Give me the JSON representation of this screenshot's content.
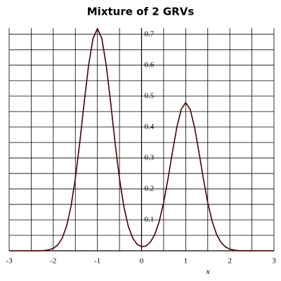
{
  "chart_data": {
    "type": "line",
    "title": "Mixture of 2 GRVs",
    "x_label": "x",
    "x": [
      -3,
      -2.9,
      -2.8,
      -2.7,
      -2.6,
      -2.5,
      -2.4,
      -2.3,
      -2.2,
      -2.1,
      -2,
      -1.9,
      -1.8,
      -1.7,
      -1.6,
      -1.5,
      -1.4,
      -1.3,
      -1.2,
      -1.1,
      -1,
      -0.9,
      -0.8,
      -0.7,
      -0.6,
      -0.5,
      -0.4,
      -0.3,
      -0.2,
      -0.1,
      0,
      0.1,
      0.2,
      0.3,
      0.4,
      0.5,
      0.6,
      0.7,
      0.8,
      0.9,
      1,
      1.1,
      1.2,
      1.3,
      1.4,
      1.5,
      1.6,
      1.7,
      1.8,
      1.9,
      2,
      2.1,
      2.2,
      2.3,
      2.4,
      2.5,
      2.6,
      2.7,
      2.8,
      2.9,
      3
    ],
    "series": [
      {
        "color": "#4a0000",
        "values": [
          0,
          0,
          0,
          0,
          0,
          0,
          0.0001,
          0.0004,
          0.0011,
          0.0031,
          0.008,
          0.0187,
          0.0403,
          0.079,
          0.1422,
          0.2334,
          0.3497,
          0.4789,
          0.5995,
          0.6864,
          0.718,
          0.6864,
          0.5995,
          0.4789,
          0.3497,
          0.2334,
          0.1423,
          0.0792,
          0.041,
          0.0208,
          0.0133,
          0.0156,
          0.028,
          0.0531,
          0.0949,
          0.1557,
          0.2333,
          0.3195,
          0.4,
          0.4579,
          0.479,
          0.4579,
          0.4,
          0.3195,
          0.2333,
          0.1557,
          0.0948,
          0.0527,
          0.0269,
          0.0125,
          0.0053,
          0.0021,
          0.0007,
          0.0002,
          0.0001,
          0,
          0,
          0,
          0,
          0,
          0
        ]
      }
    ],
    "xlim": [
      -3,
      3
    ],
    "ylim": [
      0,
      0.72
    ],
    "xticks": [
      -3,
      -2,
      -1,
      0,
      1,
      2,
      3
    ],
    "yticks": [
      0.1,
      0.2,
      0.3,
      0.4,
      0.5,
      0.6,
      0.7
    ],
    "x_minor_ticks": [
      -2.5,
      -1.5,
      -0.5,
      0.5,
      1.5,
      2.5
    ],
    "y_minor_ticks": [
      0.05,
      0.15,
      0.25,
      0.35,
      0.45,
      0.55,
      0.65
    ],
    "grid": true
  }
}
